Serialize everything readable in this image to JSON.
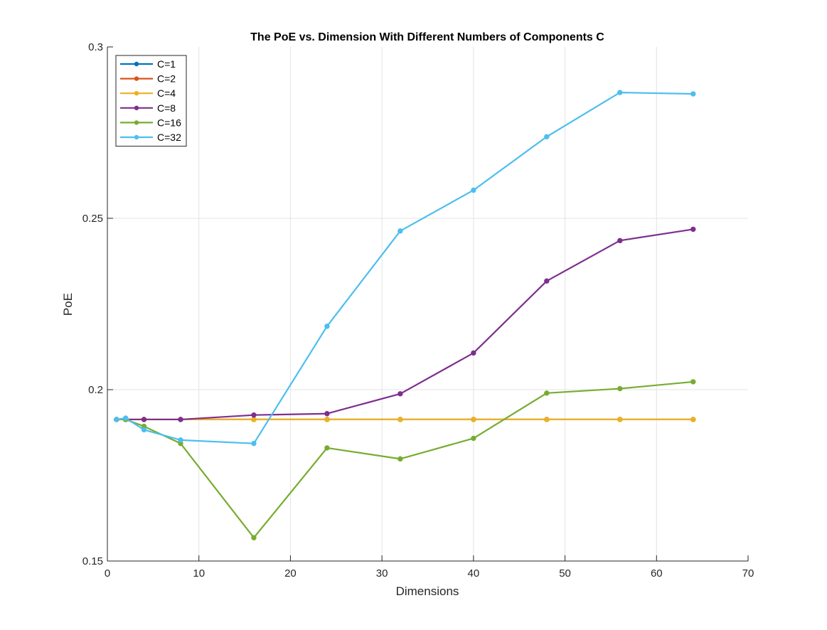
{
  "chart_data": {
    "type": "line",
    "title": "The PoE vs. Dimension With Different Numbers of Components C",
    "xlabel": "Dimensions",
    "ylabel": "PoE",
    "xlim": [
      0,
      70
    ],
    "ylim": [
      0.15,
      0.3
    ],
    "xticks": [
      0,
      10,
      20,
      30,
      40,
      50,
      60,
      70
    ],
    "xtick_labels": [
      "0",
      "10",
      "20",
      "30",
      "40",
      "50",
      "60",
      "70"
    ],
    "yticks": [
      0.15,
      0.2,
      0.25,
      0.3
    ],
    "ytick_labels": [
      "0.15",
      "0.2",
      "0.25",
      "0.3"
    ],
    "grid": true,
    "legend_position": "top-left",
    "x": [
      1,
      2,
      4,
      8,
      16,
      24,
      32,
      40,
      48,
      56,
      64
    ],
    "series": [
      {
        "name": "C=1",
        "color": "#0072BD",
        "values": [
          0.1913,
          0.1913,
          0.1913,
          0.1913,
          0.1913,
          0.1913,
          0.1913,
          0.1913,
          0.1913,
          0.1913,
          0.1913
        ]
      },
      {
        "name": "C=2",
        "color": "#D95319",
        "values": [
          0.1913,
          0.1913,
          0.1913,
          0.1913,
          0.1913,
          0.1913,
          0.1913,
          0.1913,
          0.1913,
          0.1913,
          0.1913
        ]
      },
      {
        "name": "C=4",
        "color": "#EDB120",
        "values": [
          0.1913,
          0.1913,
          0.1913,
          0.1913,
          0.1913,
          0.1913,
          0.1913,
          0.1913,
          0.1913,
          0.1913,
          0.1913
        ]
      },
      {
        "name": "C=8",
        "color": "#7E2F8E",
        "values": [
          0.1913,
          0.1913,
          0.1913,
          0.1913,
          0.1926,
          0.193,
          0.1988,
          0.2107,
          0.2317,
          0.2435,
          0.2468
        ]
      },
      {
        "name": "C=16",
        "color": "#77AC30",
        "values": [
          0.1913,
          0.1913,
          0.1893,
          0.1843,
          0.1568,
          0.183,
          0.1798,
          0.1858,
          0.199,
          0.2003,
          0.2023
        ]
      },
      {
        "name": "C=32",
        "color": "#4DBEEE",
        "values": [
          0.1913,
          0.1917,
          0.1883,
          0.1853,
          0.1843,
          0.2185,
          0.2463,
          0.2582,
          0.2738,
          0.2867,
          0.2863
        ]
      }
    ]
  }
}
